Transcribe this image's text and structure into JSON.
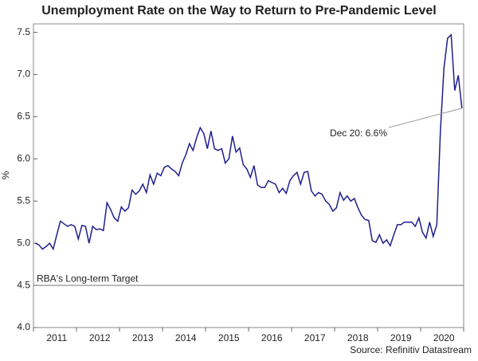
{
  "chart_data": {
    "type": "line",
    "title": "Unemployment Rate on the Way to Return to Pre-Pandemic Level",
    "y_label": "%",
    "source": "Source: Refinitiv Datastream",
    "annotation": "Dec 20: 6.6%",
    "reference": {
      "value": 4.5,
      "label": "RBA's Long-term Target"
    },
    "color": "#1f1f8c",
    "categories": [
      null,
      null,
      null,
      null,
      null,
      null,
      "2011",
      null,
      null,
      null,
      null,
      null,
      null,
      null,
      null,
      null,
      null,
      null,
      "2012",
      null,
      null,
      null,
      null,
      null,
      null,
      null,
      null,
      null,
      null,
      null,
      "2013",
      null,
      null,
      null,
      null,
      null,
      null,
      null,
      null,
      null,
      null,
      null,
      "2014",
      null,
      null,
      null,
      null,
      null,
      null,
      null,
      null,
      null,
      null,
      null,
      "2015",
      null,
      null,
      null,
      null,
      null,
      null,
      null,
      null,
      null,
      null,
      null,
      "2016",
      null,
      null,
      null,
      null,
      null,
      null,
      null,
      null,
      null,
      null,
      null,
      "2017",
      null,
      null,
      null,
      null,
      null,
      null,
      null,
      null,
      null,
      null,
      null,
      "2018",
      null,
      null,
      null,
      null,
      null,
      null,
      null,
      null,
      null,
      null,
      null,
      "2019",
      null,
      null,
      null,
      null,
      null,
      null,
      null,
      null,
      null,
      null,
      null,
      "2020",
      null,
      null,
      null,
      null,
      null
    ],
    "values": [
      5.0,
      4.98,
      4.93,
      4.96,
      5.0,
      4.93,
      5.1,
      5.26,
      5.23,
      5.2,
      5.22,
      5.2,
      5.05,
      5.21,
      5.2,
      5.0,
      5.2,
      5.16,
      5.17,
      5.15,
      5.48,
      5.4,
      5.3,
      5.26,
      5.43,
      5.38,
      5.42,
      5.63,
      5.58,
      5.62,
      5.7,
      5.6,
      5.81,
      5.7,
      5.83,
      5.8,
      5.9,
      5.92,
      5.88,
      5.85,
      5.8,
      5.95,
      6.05,
      6.18,
      6.1,
      6.25,
      6.37,
      6.3,
      6.12,
      6.33,
      6.12,
      6.1,
      6.12,
      5.95,
      6.0,
      6.27,
      6.08,
      6.13,
      5.93,
      5.88,
      5.78,
      5.92,
      5.69,
      5.66,
      5.66,
      5.74,
      5.72,
      5.7,
      5.6,
      5.65,
      5.59,
      5.74,
      5.8,
      5.84,
      5.7,
      5.84,
      5.85,
      5.62,
      5.56,
      5.6,
      5.58,
      5.5,
      5.46,
      5.38,
      5.42,
      5.6,
      5.51,
      5.56,
      5.5,
      5.53,
      5.42,
      5.33,
      5.28,
      5.27,
      5.03,
      5.01,
      5.1,
      5.0,
      5.04,
      4.97,
      5.1,
      5.22,
      5.22,
      5.25,
      5.25,
      5.25,
      5.2,
      5.3,
      5.13,
      5.06,
      5.25,
      5.08,
      5.22,
      6.33,
      7.08,
      7.43,
      7.47,
      6.81,
      6.99,
      6.6
    ],
    "ylim": [
      4.0,
      7.6
    ],
    "yticks": [
      {
        "value": 4,
        "label": "4.0"
      },
      4.5,
      {
        "value": 5,
        "label": "5.0"
      },
      5.5,
      {
        "value": 6,
        "label": "6.0"
      },
      6.5,
      {
        "value": 7,
        "label": "7.0"
      },
      7.5
    ],
    "grid": false
  }
}
